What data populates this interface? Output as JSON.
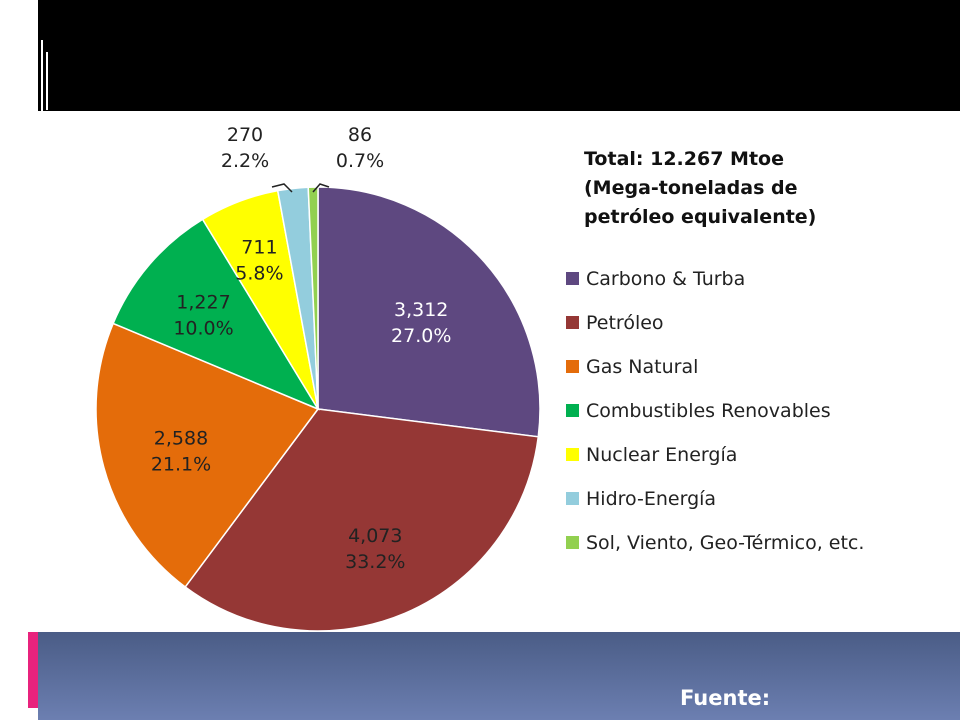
{
  "chart_data": {
    "type": "pie",
    "total_lines": [
      "Total: 12.267 Mtoe",
      "(Mega-toneladas de",
      "petróleo equivalente)"
    ],
    "slices": [
      {
        "name": "Carbono & Turba",
        "value": 3312,
        "value_label": "3,312",
        "percent": "27.0%",
        "color": "#5e4880",
        "text_color": "#ffffff"
      },
      {
        "name": "Petróleo",
        "value": 4073,
        "value_label": "4,073",
        "percent": "33.2%",
        "color": "#953735",
        "text_color": "#222222"
      },
      {
        "name": "Gas Natural",
        "value": 2588,
        "value_label": "2,588",
        "percent": "21.1%",
        "color": "#e46c0a",
        "text_color": "#222222"
      },
      {
        "name": "Combustibles Renovables",
        "value": 1227,
        "value_label": "1,227",
        "percent": "10.0%",
        "color": "#00b050",
        "text_color": "#222222"
      },
      {
        "name": "Nuclear Energía",
        "value": 711,
        "value_label": "711",
        "percent": "5.8%",
        "color": "#ffff00",
        "text_color": "#222222"
      },
      {
        "name": "Hidro-Energía",
        "value": 270,
        "value_label": "270",
        "percent": "2.2%",
        "color": "#93cddd",
        "text_color": "#222222"
      },
      {
        "name": "Sol, Viento, Geo-Térmico, etc.",
        "value": 86,
        "value_label": "86",
        "percent": "0.7%",
        "color": "#92d050",
        "text_color": "#222222"
      }
    ]
  },
  "footer": {
    "source_label": "Fuente:"
  }
}
